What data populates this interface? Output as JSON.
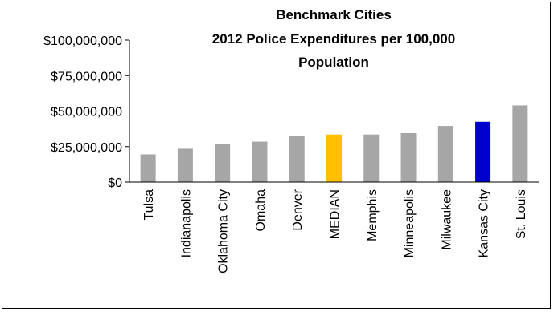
{
  "chart_data": {
    "type": "bar",
    "title_lines": [
      "Benchmark Cities",
      "2012 Police Expenditures per 100,000",
      "Population"
    ],
    "categories": [
      "Tulsa",
      "Indianapolis",
      "Oklahoma City",
      "Omaha",
      "Denver",
      "MEDIAN",
      "Memphis",
      "Minneapolis",
      "Milwaukee",
      "Kansas City",
      "St. Louis"
    ],
    "values": [
      19500000,
      23500000,
      27000000,
      28500000,
      32500000,
      33500000,
      33500000,
      34500000,
      39500000,
      42500000,
      54000000
    ],
    "bar_colors": [
      "#A6A6A6",
      "#A6A6A6",
      "#A6A6A6",
      "#A6A6A6",
      "#A6A6A6",
      "#FFC000",
      "#A6A6A6",
      "#A6A6A6",
      "#A6A6A6",
      "#0000CC",
      "#A6A6A6"
    ],
    "ylim": [
      0,
      100000000
    ],
    "yticks": [
      0,
      25000000,
      50000000,
      75000000,
      100000000
    ],
    "ytick_labels": [
      "$0",
      "$25,000,000",
      "$50,000,000",
      "$75,000,000",
      "$100,000,000"
    ],
    "xlabel": "",
    "ylabel": "",
    "grid": false,
    "legend": "none"
  }
}
